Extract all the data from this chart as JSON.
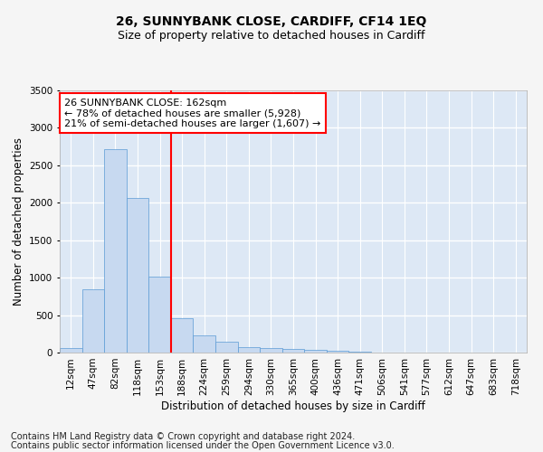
{
  "title": "26, SUNNYBANK CLOSE, CARDIFF, CF14 1EQ",
  "subtitle": "Size of property relative to detached houses in Cardiff",
  "xlabel": "Distribution of detached houses by size in Cardiff",
  "ylabel": "Number of detached properties",
  "categories": [
    "12sqm",
    "47sqm",
    "82sqm",
    "118sqm",
    "153sqm",
    "188sqm",
    "224sqm",
    "259sqm",
    "294sqm",
    "330sqm",
    "365sqm",
    "400sqm",
    "436sqm",
    "471sqm",
    "506sqm",
    "541sqm",
    "577sqm",
    "612sqm",
    "647sqm",
    "683sqm",
    "718sqm"
  ],
  "values": [
    60,
    850,
    2720,
    2060,
    1010,
    455,
    230,
    145,
    70,
    60,
    50,
    35,
    20,
    10,
    5,
    3,
    2,
    1,
    1,
    0,
    0
  ],
  "bar_color": "#c7d9f0",
  "bar_edge_color": "#5b9bd5",
  "ylim": [
    0,
    3500
  ],
  "yticks": [
    0,
    500,
    1000,
    1500,
    2000,
    2500,
    3000,
    3500
  ],
  "property_line_x": 4.5,
  "property_line_color": "red",
  "annotation_text": "26 SUNNYBANK CLOSE: 162sqm\n← 78% of detached houses are smaller (5,928)\n21% of semi-detached houses are larger (1,607) →",
  "annotation_box_color": "white",
  "annotation_box_edge_color": "red",
  "footer_line1": "Contains HM Land Registry data © Crown copyright and database right 2024.",
  "footer_line2": "Contains public sector information licensed under the Open Government Licence v3.0.",
  "fig_facecolor": "#f5f5f5",
  "background_color": "#dde8f5",
  "grid_color": "#ffffff",
  "title_fontsize": 10,
  "subtitle_fontsize": 9,
  "axis_label_fontsize": 8.5,
  "tick_fontsize": 7.5,
  "annotation_fontsize": 8,
  "footer_fontsize": 7
}
